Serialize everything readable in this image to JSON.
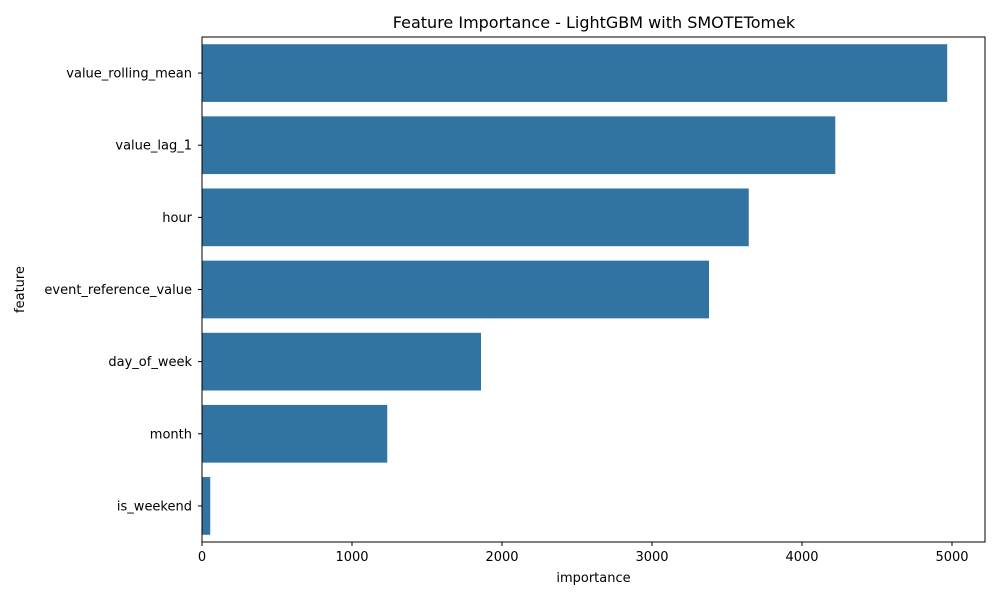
{
  "chart_data": {
    "type": "bar",
    "orientation": "horizontal",
    "title": "Feature Importance - LightGBM with SMOTETomek",
    "xlabel": "importance",
    "ylabel": "feature",
    "categories": [
      "value_rolling_mean",
      "value_lag_1",
      "hour",
      "event_reference_value",
      "day_of_week",
      "month",
      "is_weekend"
    ],
    "values": [
      4968,
      4222,
      3645,
      3380,
      1860,
      1235,
      55
    ],
    "xlim": [
      0,
      5220
    ],
    "xticks": [
      "0",
      "1000",
      "2000",
      "3000",
      "4000",
      "5000"
    ],
    "grid": false,
    "bar_color": "#3274a1"
  }
}
